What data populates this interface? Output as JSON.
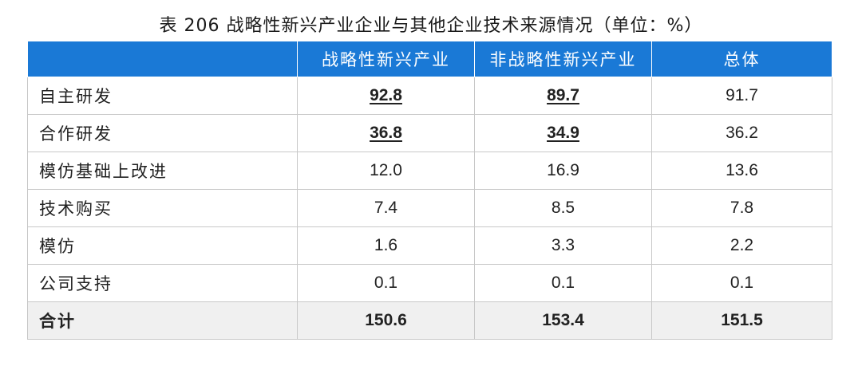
{
  "title": "表 206  战略性新兴产业企业与其他企业技术来源情况（单位：%）",
  "table": {
    "headers": [
      "",
      "战略性新兴产业",
      "非战略性新兴产业",
      "总体"
    ],
    "rows": [
      {
        "label": "自主研发",
        "values": [
          "92.8",
          "89.7",
          "91.7"
        ],
        "emphasis": [
          true,
          true,
          false
        ]
      },
      {
        "label": "合作研发",
        "values": [
          "36.8",
          "34.9",
          "36.2"
        ],
        "emphasis": [
          true,
          true,
          false
        ]
      },
      {
        "label": "模仿基础上改进",
        "values": [
          "12.0",
          "16.9",
          "13.6"
        ],
        "emphasis": [
          false,
          false,
          false
        ]
      },
      {
        "label": "技术购买",
        "values": [
          "7.4",
          "8.5",
          "7.8"
        ],
        "emphasis": [
          false,
          false,
          false
        ]
      },
      {
        "label": "模仿",
        "values": [
          "1.6",
          "3.3",
          "2.2"
        ],
        "emphasis": [
          false,
          false,
          false
        ]
      },
      {
        "label": "公司支持",
        "values": [
          "0.1",
          "0.1",
          "0.1"
        ],
        "emphasis": [
          false,
          false,
          false
        ]
      }
    ],
    "total": {
      "label": "合计",
      "values": [
        "150.6",
        "153.4",
        "151.5"
      ]
    }
  },
  "colors": {
    "header_bg": "#1a79d6",
    "header_text": "#ffffff",
    "total_bg": "#f0f0f0",
    "border": "#c8c8c8"
  }
}
